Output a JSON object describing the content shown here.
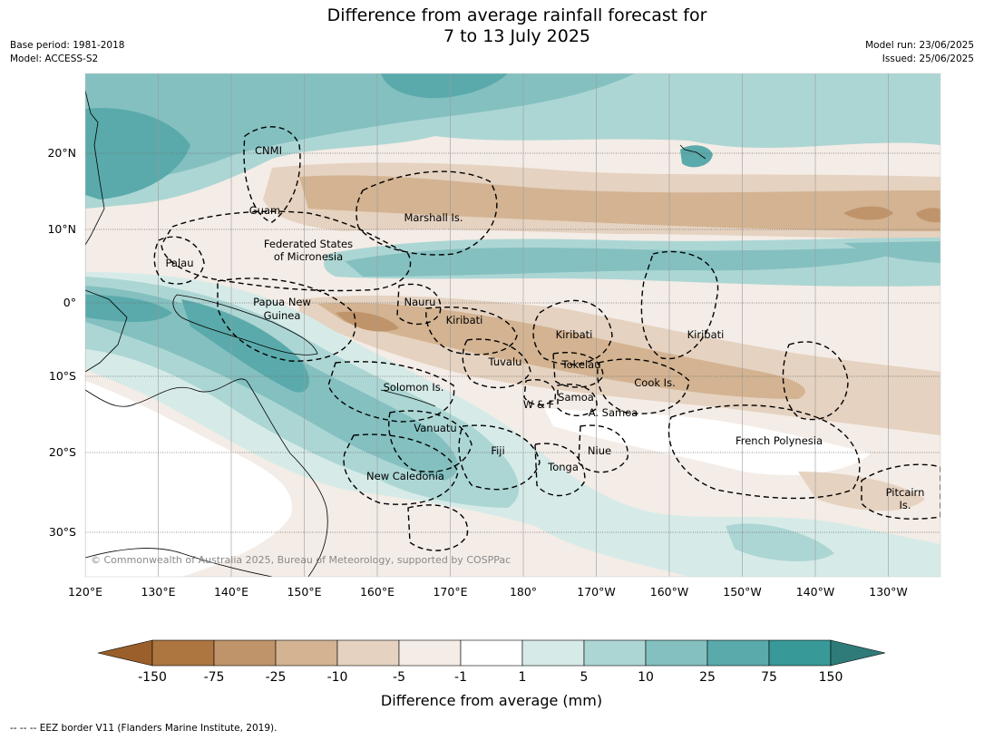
{
  "title_line1": "Difference from average rainfall forecast for",
  "title_line2": "7 to 13 July 2025",
  "base_period": "Base period: 1981-2018",
  "model": "Model: ACCESS-S2",
  "model_run": "Model run: 23/06/2025",
  "issued": "Issued: 25/06/2025",
  "lon_ticks": [
    "120°E",
    "130°E",
    "140°E",
    "150°E",
    "160°E",
    "170°E",
    "180°",
    "170°W",
    "160°W",
    "150°W",
    "140°W",
    "130°W"
  ],
  "lat_ticks": [
    "20°N",
    "10°N",
    "0°",
    "10°S",
    "20°S",
    "30°S"
  ],
  "regions": {
    "cnmi": "CNMI",
    "guam": "Guam",
    "marshall": "Marshall Is.",
    "fsm_1": "Federated States",
    "fsm_2": "of Micronesia",
    "palau": "Palau",
    "png_1": "Papua New",
    "png_2": "Guinea",
    "nauru": "Nauru",
    "kiribati_w": "Kiribati",
    "kiribati_c": "Kiribati",
    "kiribati_e": "Kiribati",
    "tuvalu": "Tuvalu",
    "tokelau": "Tokelau",
    "cook": "Cook Is.",
    "solomon": "Solomon Is.",
    "wf": "W & F",
    "samoa": "Samoa",
    "asamoa": "A. Samoa",
    "vanuatu": "Vanuatu",
    "fiji": "Fiji",
    "niue": "Niue",
    "tonga": "Tonga",
    "french_polynesia": "French Polynesia",
    "new_caledonia": "New Caledonia",
    "pitcairn_1": "Pitcairn",
    "pitcairn_2": "Is."
  },
  "copyright": "© Commonwealth of Australia 2025, Bureau of Meteorology, supported by COSPPac",
  "colorbar": {
    "labels": [
      "-150",
      "-75",
      "-25",
      "-10",
      "-5",
      "-1",
      "1",
      "5",
      "10",
      "25",
      "75",
      "150"
    ],
    "colors": [
      "#9a5f2a",
      "#ad7641",
      "#c0946a",
      "#d3b391",
      "#e5d2c0",
      "#f4ece6",
      "#ffffff",
      "#d6ebe8",
      "#acd6d4",
      "#84c0c0",
      "#5aaaab",
      "#379a99",
      "#2f7b79"
    ],
    "title": "Difference from average (mm)"
  },
  "eez_note": "--  --  -- EEZ border V11 (Flanders Marine Institute, 2019)."
}
